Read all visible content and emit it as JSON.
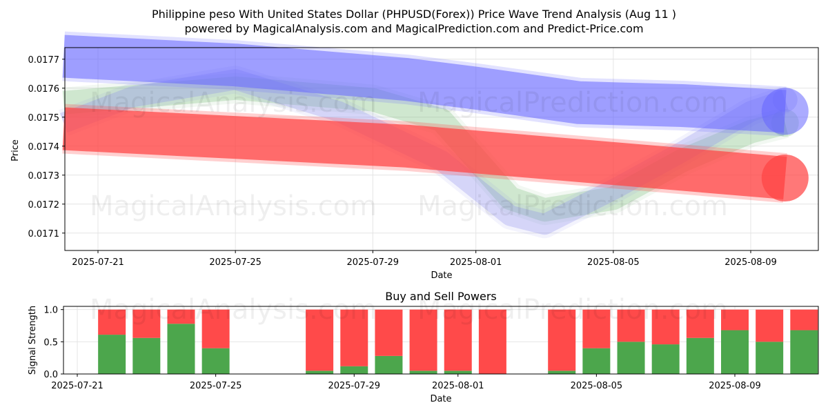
{
  "chart_data": [
    {
      "type": "line",
      "title": "Philippine peso With United States Dollar (PHPUSD(Forex)) Price Wave Trend Analysis (Aug 11 )",
      "subtitle": "powered by MagicalAnalysis.com and MagicalPrediction.com and Predict-Price.com",
      "xlabel": "Date",
      "ylabel": "Price",
      "ylim": [
        0.01704,
        0.01774
      ],
      "yticks": [
        "0.0171",
        "0.0172",
        "0.0173",
        "0.0174",
        "0.0175",
        "0.0176",
        "0.0177"
      ],
      "xticks": [
        "2025-07-21",
        "2025-07-25",
        "2025-07-29",
        "2025-08-01",
        "2025-08-05",
        "2025-08-09"
      ],
      "grid": true,
      "watermarks": [
        "MagicalAnalysis.com",
        "MagicalPrediction.com"
      ],
      "series": [
        {
          "color": "#6666ff",
          "x": [
            "2025-07-20",
            "2025-07-25",
            "2025-07-30",
            "2025-08-01",
            "2025-08-04",
            "2025-08-07",
            "2025-08-10"
          ],
          "y": [
            0.01771,
            0.01768,
            0.01763,
            0.0176,
            0.01755,
            0.01754,
            0.01752
          ]
        },
        {
          "color": "#ff4444",
          "x": [
            "2025-07-20",
            "2025-07-25",
            "2025-07-30",
            "2025-08-04",
            "2025-08-10"
          ],
          "y": [
            0.01746,
            0.01743,
            0.0174,
            0.01735,
            0.01729
          ]
        },
        {
          "color": "#77bb77",
          "x": [
            "2025-07-20",
            "2025-07-23",
            "2025-07-25",
            "2025-07-29",
            "2025-07-31",
            "2025-08-02",
            "2025-08-03",
            "2025-08-05",
            "2025-08-07",
            "2025-08-09",
            "2025-08-10"
          ],
          "y": [
            0.01755,
            0.01758,
            0.0176,
            0.01756,
            0.01749,
            0.01722,
            0.01718,
            0.01722,
            0.01735,
            0.01745,
            0.01748
          ]
        },
        {
          "color": "#8888ee",
          "x": [
            "2025-07-20",
            "2025-07-22",
            "2025-07-25",
            "2025-07-28",
            "2025-07-31",
            "2025-08-02",
            "2025-08-03",
            "2025-08-05",
            "2025-08-07",
            "2025-08-09",
            "2025-08-10"
          ],
          "y": [
            0.01748,
            0.01757,
            0.01763,
            0.01752,
            0.01735,
            0.01716,
            0.01713,
            0.01725,
            0.01738,
            0.01752,
            0.01756
          ]
        }
      ]
    },
    {
      "type": "bar",
      "title": "Buy and Sell Powers",
      "xlabel": "Date",
      "ylabel": "Signal Strength",
      "ylim": [
        0,
        1.05
      ],
      "yticks": [
        "0.0",
        "0.5",
        "1.0"
      ],
      "xticks": [
        "2025-07-21",
        "2025-07-25",
        "2025-07-29",
        "2025-08-01",
        "2025-08-05",
        "2025-08-09"
      ],
      "buy_color": "#4ca64c",
      "sell_color": "#ff4a4a",
      "categories": [
        "2025-07-22",
        "2025-07-23",
        "2025-07-24",
        "2025-07-25",
        "2025-07-28",
        "2025-07-29",
        "2025-07-30",
        "2025-07-31",
        "2025-08-01",
        "2025-08-02",
        "2025-08-04",
        "2025-08-05",
        "2025-08-06",
        "2025-08-07",
        "2025-08-08",
        "2025-08-09",
        "2025-08-10",
        "2025-08-11"
      ],
      "buy": [
        0.61,
        0.56,
        0.78,
        0.4,
        0.05,
        0.12,
        0.28,
        0.05,
        0.05,
        0.0,
        0.05,
        0.4,
        0.5,
        0.46,
        0.56,
        0.68,
        0.5,
        0.68
      ],
      "sell": [
        0.39,
        0.44,
        0.22,
        0.6,
        0.95,
        0.88,
        0.72,
        0.95,
        0.95,
        1.0,
        0.95,
        0.6,
        0.5,
        0.54,
        0.44,
        0.32,
        0.5,
        0.32
      ]
    }
  ]
}
